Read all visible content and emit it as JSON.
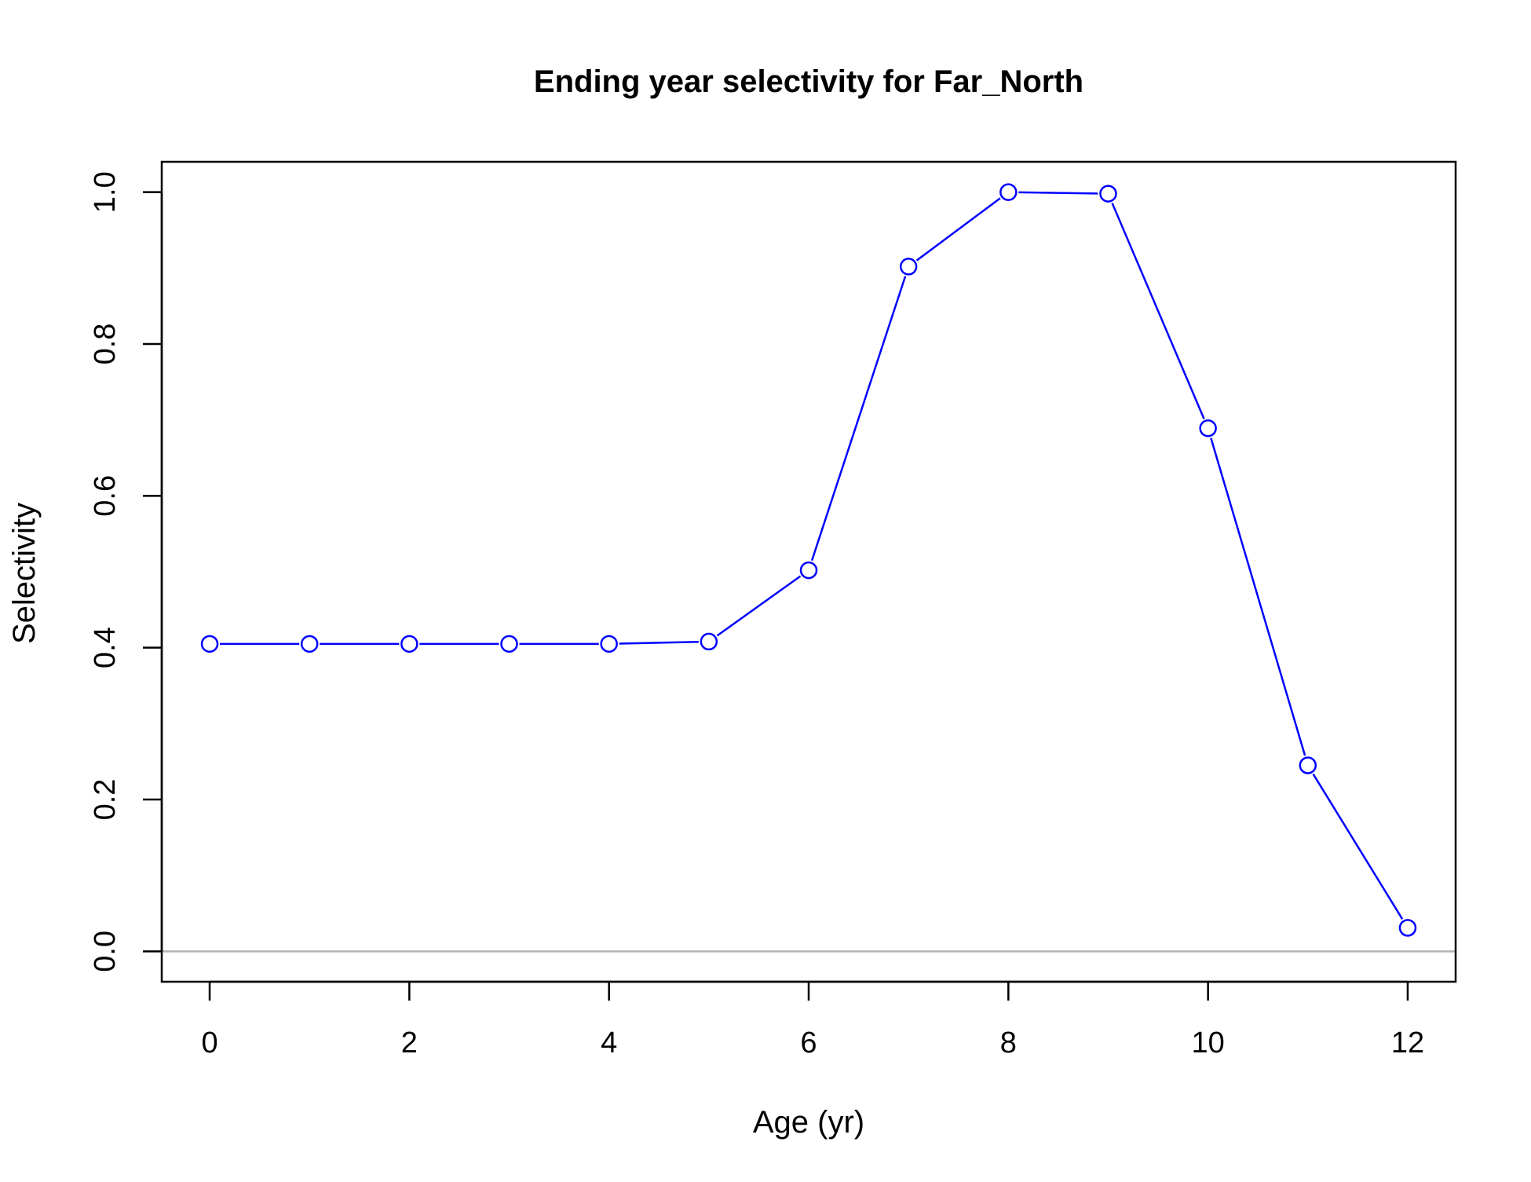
{
  "chart_data": {
    "type": "line",
    "title": "Ending year selectivity for Far_North",
    "xlabel": "Age (yr)",
    "ylabel": "Selectivity",
    "x": [
      0,
      1,
      2,
      3,
      4,
      5,
      6,
      7,
      8,
      9,
      10,
      11,
      12
    ],
    "series": [
      {
        "values": [
          0.405,
          0.405,
          0.405,
          0.405,
          0.405,
          0.408,
          0.502,
          0.902,
          1.0,
          0.998,
          0.689,
          0.245,
          0.031
        ],
        "color": "#0000ff",
        "marker": "open-circle"
      }
    ],
    "xlim": [
      -0.48,
      12.48
    ],
    "ylim": [
      -0.04,
      1.04
    ],
    "xticks": [
      0,
      2,
      4,
      6,
      8,
      10,
      12
    ],
    "xtick_labels": [
      "0",
      "2",
      "4",
      "6",
      "8",
      "10",
      "12"
    ],
    "yticks": [
      0.0,
      0.2,
      0.4,
      0.6,
      0.8,
      1.0
    ],
    "ytick_labels": [
      "0.0",
      "0.2",
      "0.4",
      "0.6",
      "0.8",
      "1.0"
    ],
    "reference_line": {
      "y": 0,
      "color": "#b3b3b3"
    },
    "grid": false,
    "legend": "none"
  }
}
